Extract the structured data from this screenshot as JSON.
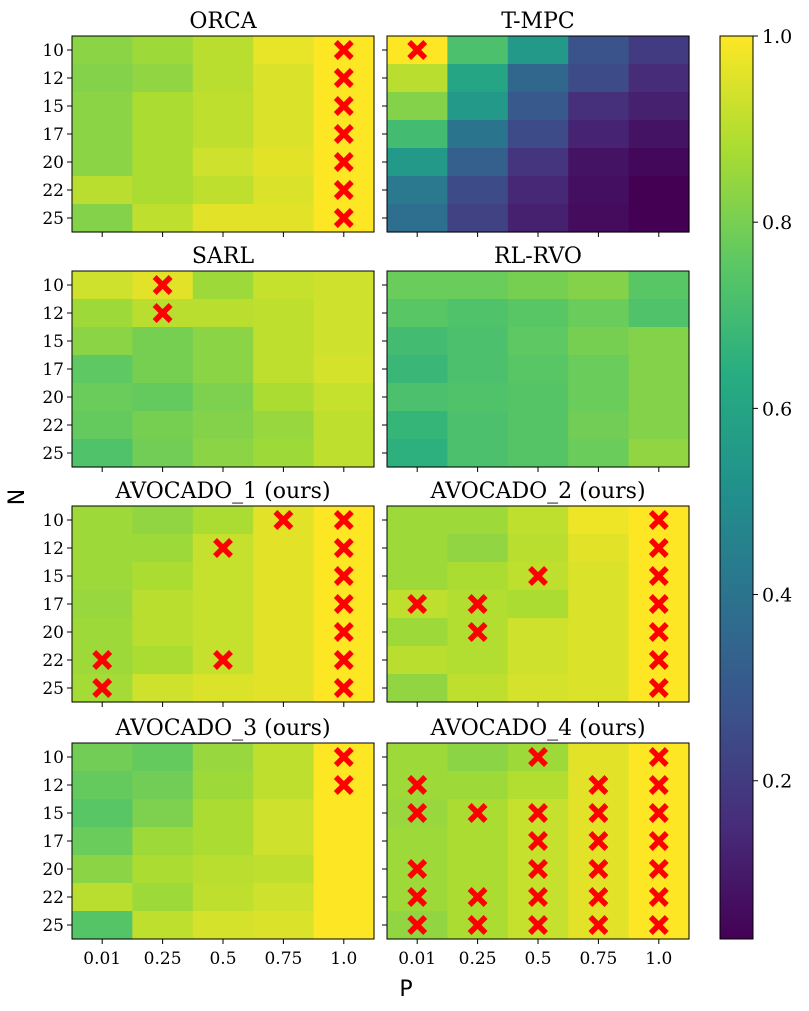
{
  "chart_data": {
    "type": "heatmap",
    "xlabel": "P",
    "ylabel": "N",
    "x_ticks": [
      "0.01",
      "0.25",
      "0.5",
      "0.75",
      "1.0"
    ],
    "y_ticks": [
      "10",
      "12",
      "15",
      "17",
      "20",
      "22",
      "25"
    ],
    "colormap": "viridis",
    "color_range": [
      0.03,
      1.0
    ],
    "colorbar_ticks": [
      "0.2",
      "0.4",
      "0.6",
      "0.8",
      "1.0"
    ],
    "colorbar_tick_values": [
      0.2,
      0.4,
      0.6,
      0.8,
      1.0
    ],
    "marker": "red X marks failing configurations",
    "marker_color": "#ff0000",
    "panels": [
      {
        "title": "ORCA",
        "values": [
          [
            0.83,
            0.86,
            0.9,
            0.97,
            1.0
          ],
          [
            0.82,
            0.84,
            0.9,
            0.95,
            1.0
          ],
          [
            0.83,
            0.88,
            0.91,
            0.95,
            1.0
          ],
          [
            0.83,
            0.88,
            0.91,
            0.95,
            1.0
          ],
          [
            0.83,
            0.88,
            0.93,
            0.96,
            1.0
          ],
          [
            0.9,
            0.88,
            0.91,
            0.95,
            1.0
          ],
          [
            0.82,
            0.91,
            0.96,
            0.96,
            1.0
          ]
        ],
        "marks": [
          [
            0,
            4
          ],
          [
            1,
            4
          ],
          [
            2,
            4
          ],
          [
            3,
            4
          ],
          [
            4,
            4
          ],
          [
            5,
            4
          ],
          [
            6,
            4
          ]
        ]
      },
      {
        "title": "T-MPC",
        "values": [
          [
            1.0,
            0.72,
            0.55,
            0.28,
            0.2
          ],
          [
            0.9,
            0.6,
            0.35,
            0.25,
            0.15
          ],
          [
            0.82,
            0.55,
            0.3,
            0.16,
            0.12
          ],
          [
            0.7,
            0.4,
            0.25,
            0.13,
            0.08
          ],
          [
            0.55,
            0.32,
            0.18,
            0.08,
            0.05
          ],
          [
            0.42,
            0.25,
            0.14,
            0.07,
            0.03
          ],
          [
            0.38,
            0.22,
            0.12,
            0.06,
            0.03
          ]
        ],
        "marks": [
          [
            0,
            0
          ]
        ]
      },
      {
        "title": "SARL",
        "values": [
          [
            0.93,
            0.96,
            0.86,
            0.92,
            0.93
          ],
          [
            0.86,
            0.9,
            0.9,
            0.91,
            0.93
          ],
          [
            0.83,
            0.8,
            0.83,
            0.91,
            0.93
          ],
          [
            0.76,
            0.8,
            0.83,
            0.91,
            0.94
          ],
          [
            0.78,
            0.77,
            0.81,
            0.88,
            0.92
          ],
          [
            0.77,
            0.8,
            0.82,
            0.85,
            0.91
          ],
          [
            0.73,
            0.79,
            0.83,
            0.86,
            0.91
          ]
        ],
        "marks": [
          [
            0,
            1
          ],
          [
            1,
            1
          ]
        ]
      },
      {
        "title": "RL-RVO",
        "values": [
          [
            0.78,
            0.78,
            0.8,
            0.82,
            0.75
          ],
          [
            0.75,
            0.73,
            0.75,
            0.78,
            0.73
          ],
          [
            0.7,
            0.72,
            0.76,
            0.8,
            0.82
          ],
          [
            0.68,
            0.72,
            0.75,
            0.78,
            0.82
          ],
          [
            0.72,
            0.73,
            0.74,
            0.78,
            0.82
          ],
          [
            0.67,
            0.72,
            0.74,
            0.79,
            0.82
          ],
          [
            0.65,
            0.72,
            0.74,
            0.78,
            0.84
          ]
        ],
        "marks": []
      },
      {
        "title": "AVOCADO_1 (ours)",
        "values": [
          [
            0.86,
            0.84,
            0.88,
            0.96,
            1.0
          ],
          [
            0.86,
            0.86,
            0.92,
            0.96,
            1.0
          ],
          [
            0.86,
            0.88,
            0.92,
            0.96,
            1.0
          ],
          [
            0.85,
            0.9,
            0.92,
            0.96,
            1.0
          ],
          [
            0.86,
            0.9,
            0.92,
            0.96,
            1.0
          ],
          [
            0.86,
            0.88,
            0.92,
            0.96,
            1.0
          ],
          [
            0.87,
            0.93,
            0.95,
            0.96,
            1.0
          ]
        ],
        "marks": [
          [
            0,
            3
          ],
          [
            0,
            4
          ],
          [
            1,
            2
          ],
          [
            1,
            4
          ],
          [
            2,
            4
          ],
          [
            3,
            4
          ],
          [
            4,
            4
          ],
          [
            5,
            0
          ],
          [
            5,
            2
          ],
          [
            5,
            4
          ],
          [
            6,
            0
          ],
          [
            6,
            4
          ]
        ]
      },
      {
        "title": "AVOCADO_2 (ours)",
        "values": [
          [
            0.86,
            0.86,
            0.91,
            0.98,
            1.0
          ],
          [
            0.86,
            0.84,
            0.9,
            0.96,
            1.0
          ],
          [
            0.86,
            0.88,
            0.91,
            0.95,
            1.0
          ],
          [
            0.91,
            0.89,
            0.88,
            0.95,
            1.0
          ],
          [
            0.86,
            0.89,
            0.93,
            0.95,
            1.0
          ],
          [
            0.9,
            0.89,
            0.93,
            0.95,
            1.0
          ],
          [
            0.84,
            0.91,
            0.94,
            0.95,
            1.0
          ]
        ],
        "marks": [
          [
            0,
            4
          ],
          [
            1,
            4
          ],
          [
            2,
            2
          ],
          [
            2,
            4
          ],
          [
            3,
            0
          ],
          [
            3,
            1
          ],
          [
            3,
            4
          ],
          [
            4,
            1
          ],
          [
            4,
            4
          ],
          [
            5,
            4
          ],
          [
            6,
            4
          ]
        ]
      },
      {
        "title": "AVOCADO_3 (ours)",
        "values": [
          [
            0.79,
            0.77,
            0.85,
            0.91,
            1.0
          ],
          [
            0.77,
            0.79,
            0.86,
            0.91,
            1.0
          ],
          [
            0.75,
            0.81,
            0.88,
            0.93,
            1.0
          ],
          [
            0.78,
            0.86,
            0.88,
            0.93,
            1.0
          ],
          [
            0.83,
            0.88,
            0.9,
            0.91,
            1.0
          ],
          [
            0.9,
            0.86,
            0.91,
            0.93,
            1.0
          ],
          [
            0.74,
            0.91,
            0.94,
            0.95,
            1.0
          ]
        ],
        "marks": [
          [
            0,
            4
          ],
          [
            1,
            4
          ]
        ]
      },
      {
        "title": "AVOCADO_4 (ours)",
        "values": [
          [
            0.86,
            0.83,
            0.86,
            0.96,
            1.0
          ],
          [
            0.86,
            0.86,
            0.89,
            0.96,
            1.0
          ],
          [
            0.85,
            0.88,
            0.92,
            0.96,
            1.0
          ],
          [
            0.86,
            0.88,
            0.92,
            0.96,
            1.0
          ],
          [
            0.86,
            0.88,
            0.92,
            0.96,
            1.0
          ],
          [
            0.86,
            0.88,
            0.92,
            0.96,
            1.0
          ],
          [
            0.84,
            0.88,
            0.92,
            0.96,
            1.0
          ]
        ],
        "marks": [
          [
            0,
            2
          ],
          [
            0,
            4
          ],
          [
            1,
            0
          ],
          [
            1,
            3
          ],
          [
            1,
            4
          ],
          [
            2,
            0
          ],
          [
            2,
            1
          ],
          [
            2,
            2
          ],
          [
            2,
            3
          ],
          [
            2,
            4
          ],
          [
            3,
            2
          ],
          [
            3,
            3
          ],
          [
            3,
            4
          ],
          [
            4,
            0
          ],
          [
            4,
            2
          ],
          [
            4,
            3
          ],
          [
            4,
            4
          ],
          [
            5,
            0
          ],
          [
            5,
            1
          ],
          [
            5,
            2
          ],
          [
            5,
            3
          ],
          [
            5,
            4
          ],
          [
            6,
            0
          ],
          [
            6,
            1
          ],
          [
            6,
            2
          ],
          [
            6,
            3
          ],
          [
            6,
            4
          ]
        ]
      }
    ]
  }
}
